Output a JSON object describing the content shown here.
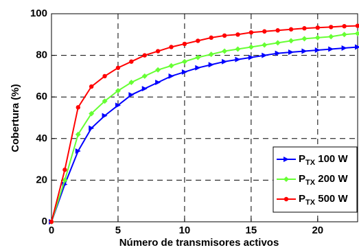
{
  "chart_data": {
    "type": "line",
    "xlabel": "Número de transmisores activos",
    "ylabel": "Cobertura (%)",
    "x": [
      0,
      1,
      2,
      3,
      4,
      5,
      6,
      7,
      8,
      9,
      10,
      11,
      12,
      13,
      14,
      15,
      16,
      17,
      18,
      19,
      20,
      21,
      22,
      23
    ],
    "series": [
      {
        "name": "PTX 100 W",
        "color": "#0000ff",
        "marker": "triangle-right",
        "values": [
          0,
          18,
          34,
          45,
          51,
          56,
          61,
          64,
          67,
          70,
          72,
          74,
          75.5,
          77,
          78,
          79,
          80,
          81,
          81.5,
          82,
          82.5,
          83,
          83.5,
          84
        ]
      },
      {
        "name": "PTX 200 W",
        "color": "#66ff33",
        "marker": "diamond",
        "values": [
          0,
          20,
          42,
          52,
          58,
          63,
          67,
          70,
          73,
          75,
          77,
          79,
          80.5,
          82,
          83,
          84,
          85,
          86,
          87,
          88,
          88.5,
          89,
          90,
          90.5
        ]
      },
      {
        "name": "PTX 500 W",
        "color": "#ff0000",
        "marker": "circle",
        "values": [
          0,
          25,
          55,
          65,
          70,
          74,
          77,
          80,
          82,
          84,
          85.5,
          87,
          88.5,
          89.5,
          90,
          91,
          91.5,
          92,
          92.5,
          93,
          93.3,
          93.6,
          94,
          94.2
        ]
      }
    ],
    "xlim": [
      0,
      23
    ],
    "xticks": [
      0,
      5,
      10,
      15,
      20
    ],
    "ylim": [
      0,
      100
    ],
    "yticks": [
      0,
      20,
      40,
      60,
      80,
      100
    ],
    "grid": true,
    "legend": "lower right"
  }
}
